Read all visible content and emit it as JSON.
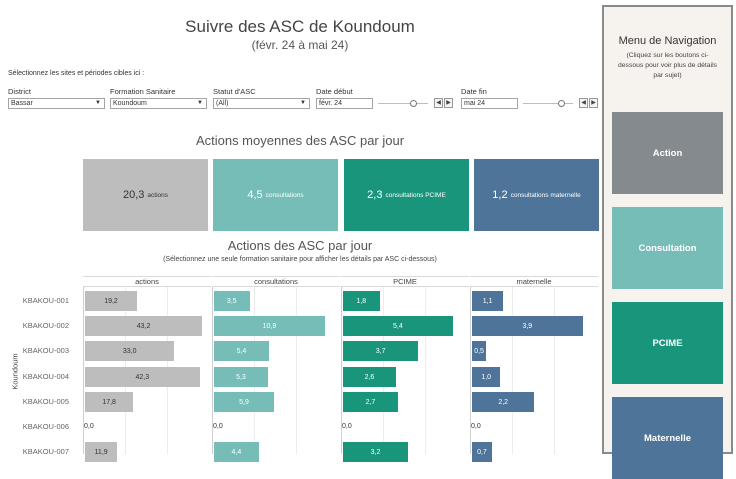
{
  "header": {
    "title": "Suivre des ASC de Koundoum",
    "subtitle": "(févr. 24 à mai 24)",
    "select_hint": "Sélectionnez les sites et périodes cibles ici :"
  },
  "filters": {
    "district": {
      "label": "District",
      "value": "Bassar"
    },
    "formation": {
      "label": "Formation Sanitaire",
      "value": "Koundoum"
    },
    "statut": {
      "label": "Statut d'ASC",
      "value": "(All)"
    },
    "date_debut": {
      "label": "Date début",
      "value": "févr. 24"
    },
    "date_fin": {
      "label": "Date fin",
      "value": "mai 24"
    }
  },
  "kpis": {
    "title": "Actions moyennes des ASC par jour",
    "items": [
      {
        "value": "20,3",
        "label": "actions",
        "color": "#bdbdbd",
        "text_color": "#333333"
      },
      {
        "value": "4,5",
        "label": "consultations",
        "color": "#76bdb8",
        "text_color": "#ffffff"
      },
      {
        "value": "2,3",
        "label": "consultations PCIME",
        "color": "#19957c",
        "text_color": "#ffffff"
      },
      {
        "value": "1,2",
        "label": "consultations maternelle",
        "color": "#4e7599",
        "text_color": "#ffffff"
      }
    ]
  },
  "chart_data": {
    "type": "bar",
    "title": "Actions des ASC par jour",
    "subtitle": "(Sélectionnez une seule formation sanitaire pour afficher les détails par ASC ci-dessous)",
    "ylabel": "Koundoum",
    "categories": [
      "KBAKOU-001",
      "KBAKOU-002",
      "KBAKOU-003",
      "KBAKOU-004",
      "KBAKOU-005",
      "KBAKOU-006",
      "KBAKOU-007"
    ],
    "series": [
      {
        "name": "actions",
        "color": "#bdbdbd",
        "max": 45,
        "values": [
          19.2,
          43.2,
          33.0,
          42.3,
          17.8,
          0.0,
          11.9
        ],
        "labels": [
          "19,2",
          "43,2",
          "33,0",
          "42,3",
          "17,8",
          "0,0",
          "11,9"
        ]
      },
      {
        "name": "consultations",
        "color": "#76bdb8",
        "max": 12,
        "values": [
          3.5,
          10.9,
          5.4,
          5.3,
          5.9,
          0.0,
          4.4
        ],
        "labels": [
          "3,5",
          "10,9",
          "5,4",
          "5,3",
          "5,9",
          "0,0",
          "4,4"
        ]
      },
      {
        "name": "PCIME",
        "color": "#19957c",
        "max": 6,
        "values": [
          1.8,
          5.4,
          3.7,
          2.6,
          2.7,
          0.0,
          3.2
        ],
        "labels": [
          "1,8",
          "5,4",
          "3,7",
          "2,6",
          "2,7",
          "0,0",
          "3,2"
        ]
      },
      {
        "name": "maternelle",
        "color": "#4e7599",
        "max": 4.3,
        "values": [
          1.1,
          3.9,
          0.5,
          1.0,
          2.2,
          0.0,
          0.7
        ],
        "labels": [
          "1,1",
          "3,9",
          "0,5",
          "1,0",
          "2,2",
          "0,0",
          "0,7"
        ]
      }
    ]
  },
  "sidebar": {
    "title": "Menu de Navigation",
    "subtitle": "(Cliquez sur les boutons ci-dessous pour voir plus de détails par sujet)",
    "buttons": [
      {
        "label": "Action",
        "color": "#858a8e"
      },
      {
        "label": "Consultation",
        "color": "#76bdb8"
      },
      {
        "label": "PCIME",
        "color": "#19957c"
      },
      {
        "label": "Maternelle",
        "color": "#4e7599"
      }
    ]
  }
}
